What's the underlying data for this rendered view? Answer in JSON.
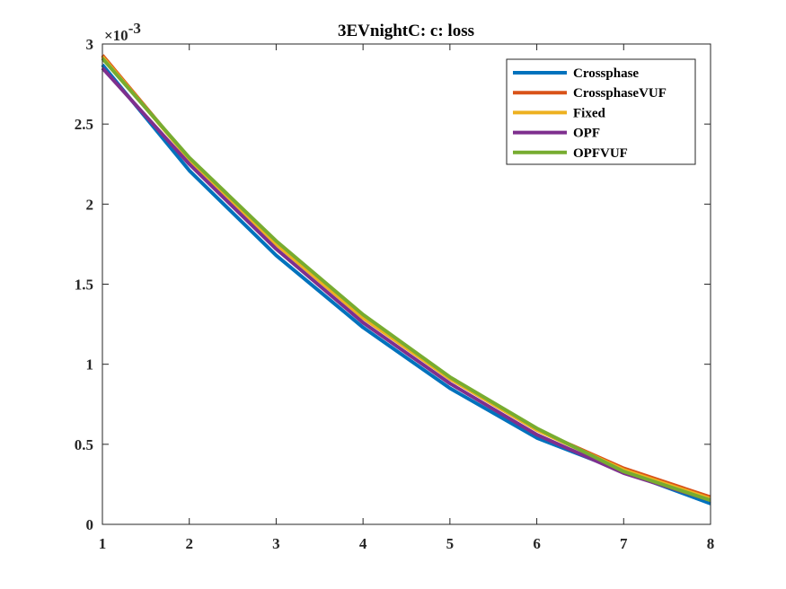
{
  "chart_data": {
    "type": "line",
    "title": "3EVnightC: c: loss",
    "xlabel": "",
    "ylabel": "",
    "x": [
      1,
      2,
      3,
      4,
      5,
      6,
      7,
      8
    ],
    "xlim": [
      1,
      8
    ],
    "ylim": [
      0,
      3
    ],
    "xticks": [
      "1",
      "2",
      "3",
      "4",
      "5",
      "6",
      "7",
      "8"
    ],
    "yticks": [
      "0",
      "0.5",
      "1",
      "1.5",
      "2",
      "2.5",
      "3"
    ],
    "y_exponent_base": "×10",
    "y_exponent_power": "-3",
    "grid": false,
    "legend_position": "top-right",
    "series": [
      {
        "name": "Crossphase",
        "color": "#0072BD",
        "values": [
          2.87,
          2.21,
          1.68,
          1.23,
          0.85,
          0.54,
          0.33,
          0.13
        ]
      },
      {
        "name": "CrossphaseVUF",
        "color": "#D95319",
        "values": [
          2.93,
          2.28,
          1.76,
          1.3,
          0.91,
          0.59,
          0.35,
          0.17
        ]
      },
      {
        "name": "Fixed",
        "color": "#EDB120",
        "values": [
          2.92,
          2.28,
          1.75,
          1.29,
          0.91,
          0.59,
          0.34,
          0.16
        ]
      },
      {
        "name": "OPF",
        "color": "#7E2F8E",
        "values": [
          2.85,
          2.25,
          1.72,
          1.26,
          0.88,
          0.56,
          0.32,
          0.15
        ]
      },
      {
        "name": "OPFVUF",
        "color": "#77AC30",
        "values": [
          2.91,
          2.29,
          1.77,
          1.31,
          0.92,
          0.6,
          0.33,
          0.15
        ]
      }
    ]
  }
}
